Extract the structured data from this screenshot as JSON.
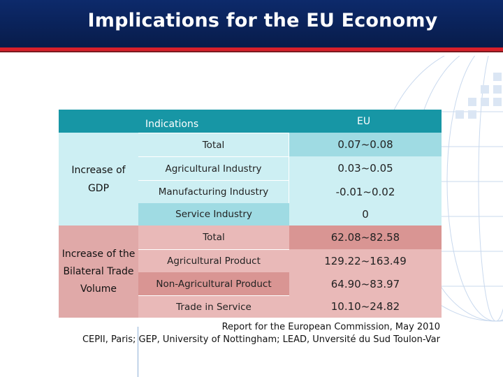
{
  "slide": {
    "title": "Implications for the EU Economy"
  },
  "table": {
    "header": {
      "indications": "Indications",
      "eu": "EU"
    },
    "gdp": {
      "group_label_line1": "Increase of",
      "group_label_line2": "GDP",
      "rows": [
        {
          "label": "Total",
          "value": "0.07~0.08"
        },
        {
          "label": "Agricultural Industry",
          "value": "0.03~0.05"
        },
        {
          "label": "Manufacturing Industry",
          "value": "-0.01~0.02"
        },
        {
          "label": "Service Industry",
          "value": "0"
        }
      ]
    },
    "trade": {
      "group_label_line1": "Increase of the",
      "group_label_line2": "Bilateral Trade",
      "group_label_line3": "Volume",
      "rows": [
        {
          "label": "Total",
          "value": "62.08~82.58"
        },
        {
          "label": "Agricultural Product",
          "value": "129.22~163.49"
        },
        {
          "label": "Non-Agricultural Product",
          "value": "64.90~83.97"
        },
        {
          "label": "Trade in Service",
          "value": "10.10~24.82"
        }
      ]
    }
  },
  "source": {
    "line1": "Report for the European Commission, May 2010",
    "line2": "CEPII, Paris; GEP, University of Nottingham; LEAD, Unversité du Sud Toulon-Var"
  },
  "colors": {
    "title_bar": "#0a2259",
    "title_stripe": "#d8202a",
    "header": "#1796a5",
    "gdp_light": "#cdeff3",
    "gdp_dark": "#9fdbe3",
    "trade_light": "#e9b9b8",
    "trade_dark": "#d99593"
  }
}
